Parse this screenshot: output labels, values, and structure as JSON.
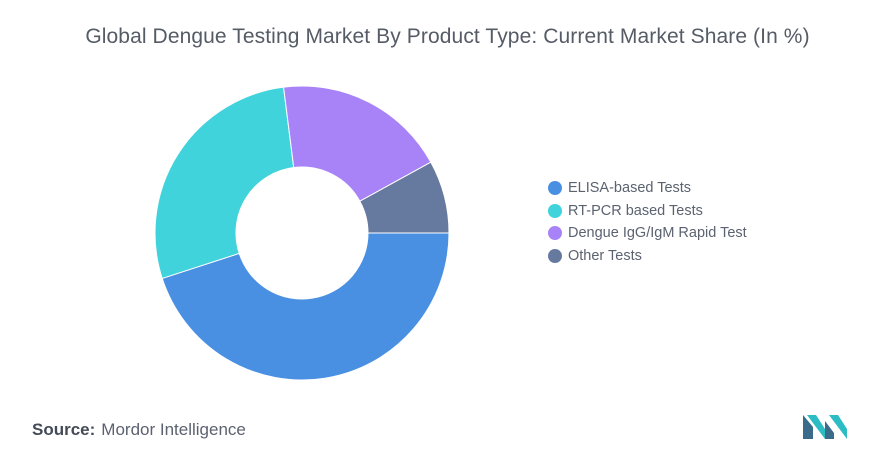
{
  "chart_data": {
    "type": "pie",
    "title": "Global Dengue Testing Market By Product Type: Current Market Share (In %)",
    "categories": [
      "ELISA-based Tests",
      "RT-PCR based Tests",
      "Dengue IgG/IgM Rapid Test",
      "Other Tests"
    ],
    "values": [
      45,
      28,
      19,
      8
    ],
    "colors": [
      "#4a90e2",
      "#40d3db",
      "#a883f8",
      "#66799e"
    ],
    "donut": true,
    "legend_position": "right"
  },
  "source": {
    "label": "Source:",
    "value": "Mordor Intelligence"
  },
  "logo": {
    "icon": "mordor-intelligence-logo",
    "colors": [
      "#3a6b8a",
      "#2bbcc4"
    ]
  }
}
